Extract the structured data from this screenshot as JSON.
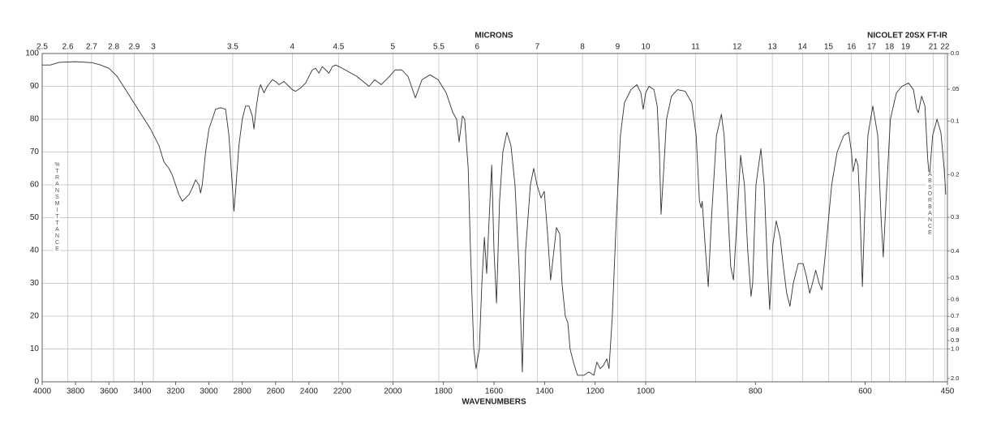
{
  "chart_data": {
    "type": "line",
    "title": "NICOLET 20SX FT-IR",
    "xlabel": "WAVENUMBERS",
    "x2label": "MICRONS",
    "ylabel": "%TRANSMITTANCE",
    "y2label": "ABSORBANCE",
    "color": "#333333",
    "grid": true,
    "xlim": [
      4000,
      450
    ],
    "xscale_breaks": [
      2200,
      1000
    ],
    "xticks": [
      4000,
      3800,
      3600,
      3400,
      3200,
      3000,
      2800,
      2600,
      2400,
      2200,
      2000,
      1800,
      1600,
      1400,
      1200,
      1000,
      800,
      600,
      450
    ],
    "x2ticks": [
      2.5,
      2.6,
      2.7,
      2.8,
      2.9,
      3,
      3.5,
      4,
      4.5,
      5,
      5.5,
      6,
      7,
      8,
      9,
      10,
      11,
      12,
      13,
      14,
      15,
      16,
      17,
      18,
      19,
      21,
      22
    ],
    "ylim": [
      0,
      100
    ],
    "yticks": [
      0,
      10,
      20,
      30,
      40,
      50,
      60,
      70,
      80,
      90,
      100
    ],
    "y2scale": "absorbance",
    "y2ticks": [
      {
        "value": 0,
        "label": "0.0"
      },
      {
        "value": 0.05,
        "label": ".05"
      },
      0.1,
      0.2,
      0.3,
      0.4,
      0.5,
      0.6,
      0.7,
      0.8,
      0.9,
      {
        "value": 1,
        "label": "1.0"
      },
      {
        "value": 2,
        "label": "2.0"
      }
    ],
    "x": [
      4000,
      3950,
      3900,
      3800,
      3700,
      3650,
      3600,
      3550,
      3500,
      3450,
      3400,
      3350,
      3300,
      3270,
      3240,
      3220,
      3200,
      3180,
      3160,
      3140,
      3120,
      3100,
      3080,
      3060,
      3050,
      3040,
      3020,
      3000,
      2980,
      2960,
      2930,
      2900,
      2880,
      2860,
      2850,
      2840,
      2820,
      2800,
      2780,
      2760,
      2740,
      2730,
      2715,
      2700,
      2690,
      2670,
      2650,
      2620,
      2600,
      2580,
      2550,
      2520,
      2500,
      2480,
      2450,
      2420,
      2400,
      2380,
      2360,
      2340,
      2320,
      2300,
      2280,
      2260,
      2240,
      2220,
      2200,
      2142,
      2094,
      2072,
      2046,
      2014,
      1991,
      1965,
      1940,
      1911,
      1885,
      1853,
      1821,
      1789,
      1763,
      1748,
      1738,
      1725,
      1716,
      1702,
      1693,
      1680,
      1671,
      1658,
      1648,
      1638,
      1629,
      1619,
      1609,
      1600,
      1590,
      1578,
      1565,
      1549,
      1533,
      1517,
      1501,
      1488,
      1475,
      1456,
      1443,
      1430,
      1414,
      1401,
      1388,
      1376,
      1363,
      1353,
      1340,
      1331,
      1318,
      1308,
      1299,
      1286,
      1270,
      1244,
      1225,
      1205,
      1193,
      1180,
      1167,
      1154,
      1145,
      1132,
      1116,
      1100,
      1084,
      1058,
      1035,
      1019,
      1010,
      1000,
      994,
      985,
      979,
      975,
      972,
      967,
      962,
      953,
      942,
      928,
      916,
      908,
      902,
      899,
      897,
      891,
      886,
      880,
      871,
      862,
      857,
      851,
      845,
      840,
      834,
      827,
      820,
      814,
      808,
      805,
      799,
      790,
      784,
      778,
      774,
      768,
      762,
      755,
      749,
      743,
      737,
      731,
      722,
      713,
      707,
      701,
      696,
      690,
      684,
      679,
      672,
      661,
      651,
      639,
      630,
      625,
      622,
      617,
      613,
      610,
      605,
      601,
      595,
      586,
      577,
      571,
      567,
      562,
      554,
      543,
      533,
      521,
      512,
      506,
      503,
      497,
      491,
      486,
      483,
      477,
      469,
      462,
      456,
      453
    ],
    "values": [
      96.5,
      96.5,
      97.3,
      97.5,
      97.2,
      96.5,
      95.5,
      93,
      89,
      85,
      81,
      77,
      72,
      67,
      65,
      63,
      60,
      57,
      55,
      56,
      57,
      59,
      61.5,
      60,
      57.5,
      60,
      70,
      77,
      80,
      83,
      83.5,
      83,
      75,
      60,
      52,
      58,
      72,
      80,
      84,
      84,
      81,
      77,
      84,
      89,
      90.5,
      88,
      90,
      92,
      91.5,
      90.5,
      91.5,
      90,
      89,
      88.5,
      89.5,
      91,
      93,
      95,
      95.5,
      94,
      96,
      95,
      94,
      96,
      96.5,
      96,
      95.5,
      93,
      90,
      92,
      90.5,
      93,
      95,
      95,
      93,
      86.5,
      92,
      93.5,
      92,
      88,
      82,
      80,
      73,
      81,
      80,
      65,
      40,
      10,
      4,
      10,
      30,
      44,
      33,
      50,
      66,
      40,
      24,
      55,
      70,
      76,
      72,
      60,
      35,
      3,
      40,
      60,
      65,
      60,
      56,
      58,
      45,
      31,
      40,
      47,
      45,
      30,
      20,
      18,
      10,
      6,
      2,
      2,
      3,
      2,
      6,
      4,
      5,
      7,
      4,
      20,
      50,
      75,
      85,
      89,
      90.5,
      88,
      83,
      88,
      90,
      89,
      84,
      70,
      51,
      65,
      80,
      87,
      89,
      88.5,
      85,
      75,
      55,
      53,
      55,
      40,
      29,
      50,
      75,
      81.5,
      75,
      55,
      35,
      31,
      48,
      69,
      60,
      40,
      26,
      30,
      60,
      71,
      60,
      35,
      22,
      42,
      49,
      44,
      35,
      27,
      23,
      30,
      36,
      36,
      32,
      27,
      30,
      34,
      30,
      28,
      40,
      60,
      70,
      75,
      76,
      70,
      64,
      68,
      66,
      55,
      29,
      50,
      75,
      84,
      75,
      50,
      38,
      55,
      80,
      88,
      90,
      91,
      89,
      83,
      82,
      87,
      84,
      68,
      62,
      75,
      80,
      76,
      65,
      57
    ]
  }
}
